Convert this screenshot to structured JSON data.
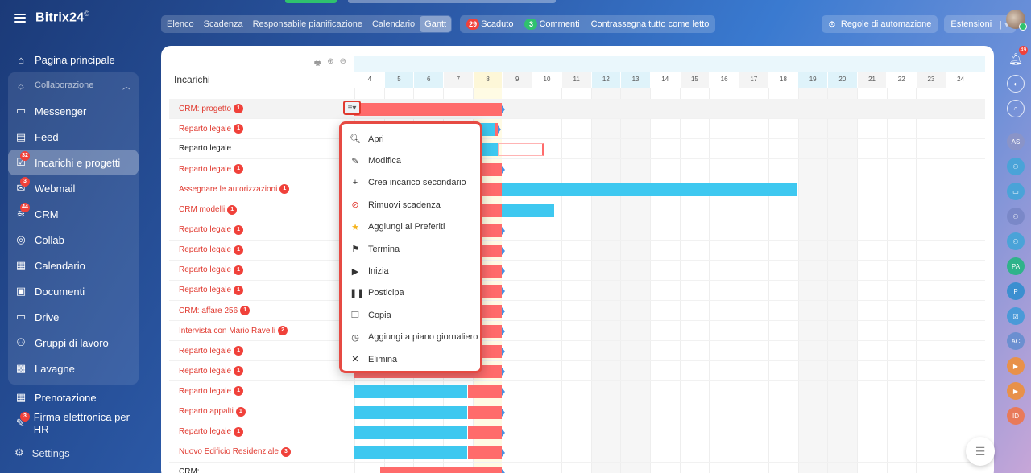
{
  "app": {
    "logo": "Bitrix24",
    "logo_mark": "©"
  },
  "sidebar": {
    "items": [
      {
        "label": "Pagina principale",
        "icon": "home-icon"
      },
      {
        "label": "Collaborazione",
        "icon": "collab-icon"
      },
      {
        "label": "Messenger",
        "icon": "chat-icon"
      },
      {
        "label": "Feed",
        "icon": "feed-icon"
      },
      {
        "label": "Incarichi e progetti",
        "icon": "tasks-icon",
        "badge": "32"
      },
      {
        "label": "Webmail",
        "icon": "mail-icon",
        "badge": "3"
      },
      {
        "label": "CRM",
        "icon": "crm-icon",
        "badge": "44"
      },
      {
        "label": "Collab",
        "icon": "collab-circle-icon"
      },
      {
        "label": "Calendario",
        "icon": "calendar-icon"
      },
      {
        "label": "Documenti",
        "icon": "documents-icon"
      },
      {
        "label": "Drive",
        "icon": "drive-icon"
      },
      {
        "label": "Gruppi di lavoro",
        "icon": "groups-icon"
      },
      {
        "label": "Lavagne",
        "icon": "boards-icon"
      },
      {
        "label": "Prenotazione",
        "icon": "booking-icon"
      },
      {
        "label": "Firma elettronica per HR",
        "icon": "esign-icon",
        "badge": "3"
      }
    ],
    "settings": "Settings"
  },
  "topbar": {
    "views": [
      "Elenco",
      "Scadenza",
      "Responsabile pianificazione",
      "Calendario",
      "Gantt"
    ],
    "overdue_count": "29",
    "overdue_label": "Scaduto",
    "comments_count": "3",
    "comments_label": "Commenti",
    "mark_read": "Contrassegna tutto come letto",
    "automation": "Regole di automazione",
    "extensions": "Estensioni"
  },
  "rail": {
    "notifications_badge": "49",
    "avatars": [
      "AS",
      "PA",
      "P",
      "AC",
      "ID"
    ]
  },
  "gantt": {
    "column_title": "Incarichi",
    "days": [
      "4",
      "5",
      "6",
      "7",
      "8",
      "9",
      "10",
      "11",
      "12",
      "13",
      "14",
      "15",
      "16",
      "17",
      "18",
      "19",
      "20",
      "21",
      "22",
      "23",
      "24"
    ],
    "rows": [
      {
        "label": "CRM: progetto",
        "badge": "1"
      },
      {
        "label": "Reparto legale",
        "badge": "1"
      },
      {
        "label": "Reparto legale",
        "badge": ""
      },
      {
        "label": "Reparto legale",
        "badge": "1"
      },
      {
        "label": "Assegnare le autorizzazioni",
        "badge": "1"
      },
      {
        "label": "CRM modelli",
        "badge": "1"
      },
      {
        "label": "Reparto legale",
        "badge": "1"
      },
      {
        "label": "Reparto legale",
        "badge": "1"
      },
      {
        "label": "Reparto legale",
        "badge": "1"
      },
      {
        "label": "Reparto legale",
        "badge": "1"
      },
      {
        "label": "CRM: affare 256",
        "badge": "1"
      },
      {
        "label": "Intervista con Mario Ravelli",
        "badge": "2"
      },
      {
        "label": "Reparto legale",
        "badge": "1"
      },
      {
        "label": "Reparto legale",
        "badge": "1"
      },
      {
        "label": "Reparto legale",
        "badge": "1"
      },
      {
        "label": "Reparto appalti",
        "badge": "1"
      },
      {
        "label": "Reparto legale",
        "badge": "1"
      },
      {
        "label": "Nuovo Edificio Residenziale",
        "badge": "3"
      },
      {
        "label": "CRM:",
        "badge": ""
      }
    ]
  },
  "context_menu": [
    {
      "label": "Apri",
      "icon": "search-icon"
    },
    {
      "label": "Modifica",
      "icon": "pencil-icon"
    },
    {
      "label": "Crea incarico secondario",
      "icon": "plus-icon"
    },
    {
      "label": "Rimuovi scadenza",
      "icon": "remove-deadline-icon"
    },
    {
      "label": "Aggiungi ai Preferiti",
      "icon": "star-icon"
    },
    {
      "label": "Termina",
      "icon": "flag-icon"
    },
    {
      "label": "Inizia",
      "icon": "play-icon"
    },
    {
      "label": "Posticipa",
      "icon": "pause-icon"
    },
    {
      "label": "Copia",
      "icon": "copy-icon"
    },
    {
      "label": "Aggiungi a piano giornaliero",
      "icon": "clock-icon"
    },
    {
      "label": "Elimina",
      "icon": "close-icon"
    }
  ]
}
